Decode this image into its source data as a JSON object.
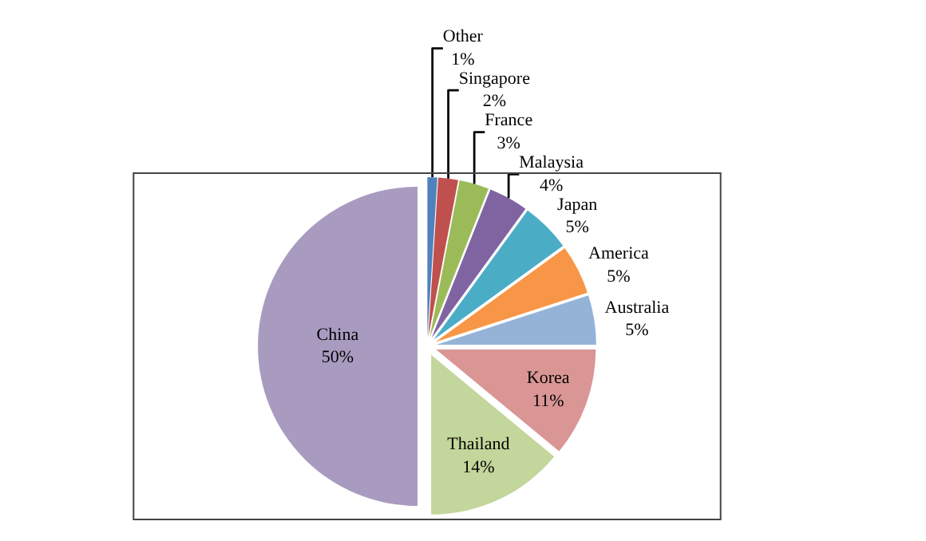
{
  "chart_data": {
    "type": "pie",
    "categories": [
      "Other",
      "Singapore",
      "France",
      "Malaysia",
      "Japan",
      "America",
      "Australia",
      "Korea",
      "Thailand",
      "China"
    ],
    "values": [
      1,
      2,
      3,
      4,
      5,
      5,
      5,
      11,
      14,
      50
    ],
    "colors": [
      "#4f81bd",
      "#c0504d",
      "#9bbb59",
      "#8064a2",
      "#4bacc6",
      "#f79646",
      "#95b3d7",
      "#d99694",
      "#c3d69b",
      "#a99bc0"
    ],
    "value_labels": [
      "1%",
      "2%",
      "3%",
      "4%",
      "5%",
      "5%",
      "5%",
      "11%",
      "14%",
      "50%"
    ],
    "legend": false
  }
}
